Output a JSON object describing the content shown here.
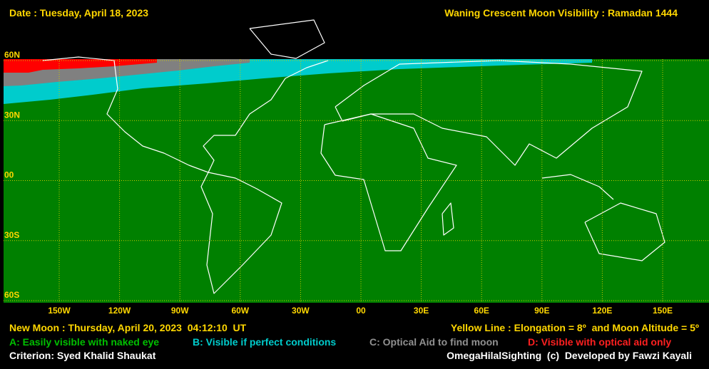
{
  "header": {
    "date": "Date : Tuesday, April 18, 2023",
    "title": "Waning Crescent Moon Visibility : Ramadan 1444"
  },
  "map": {
    "lat_labels": [
      "60N",
      "30N",
      "00",
      "30S",
      "60S"
    ],
    "lon_labels": [
      "150W",
      "120W",
      "90W",
      "60W",
      "30W",
      "00",
      "30E",
      "60E",
      "90E",
      "120E",
      "150E"
    ]
  },
  "footer": {
    "new_moon": "New Moon : Thursday, April 20, 2023  04:12:10  UT",
    "yellow_line": "Yellow Line : Elongation = 8º  and Moon Altitude = 5º",
    "legend": [
      "A: Easily visible with naked eye",
      "B: Visible if perfect conditions",
      "C: Optical Aid to find moon",
      "D: Visible with optical aid only"
    ],
    "criterion": "Criterion: Syed Khalid Shaukat",
    "credit": "OmegaHilalSighting  (c)  Developed by Fawzi Kayali"
  }
}
